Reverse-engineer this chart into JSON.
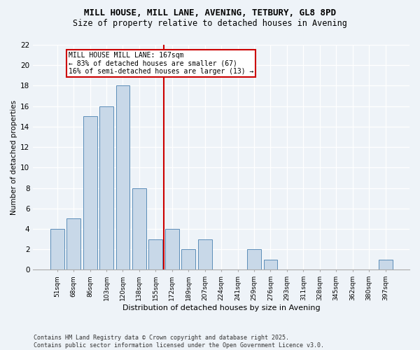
{
  "title1": "MILL HOUSE, MILL LANE, AVENING, TETBURY, GL8 8PD",
  "title2": "Size of property relative to detached houses in Avening",
  "xlabel": "Distribution of detached houses by size in Avening",
  "ylabel": "Number of detached properties",
  "bar_color": "#c8d8e8",
  "bar_edgecolor": "#5b8db8",
  "categories": [
    "51sqm",
    "68sqm",
    "86sqm",
    "103sqm",
    "120sqm",
    "138sqm",
    "155sqm",
    "172sqm",
    "189sqm",
    "207sqm",
    "224sqm",
    "241sqm",
    "259sqm",
    "276sqm",
    "293sqm",
    "311sqm",
    "328sqm",
    "345sqm",
    "362sqm",
    "380sqm",
    "397sqm"
  ],
  "values": [
    4,
    5,
    15,
    16,
    18,
    8,
    3,
    4,
    2,
    3,
    0,
    0,
    2,
    1,
    0,
    0,
    0,
    0,
    0,
    0,
    1
  ],
  "vline_color": "#cc0000",
  "annotation_text": "MILL HOUSE MILL LANE: 167sqm\n← 83% of detached houses are smaller (67)\n16% of semi-detached houses are larger (13) →",
  "annotation_box_edgecolor": "#cc0000",
  "ylim": [
    0,
    22
  ],
  "yticks": [
    0,
    2,
    4,
    6,
    8,
    10,
    12,
    14,
    16,
    18,
    20,
    22
  ],
  "footer": "Contains HM Land Registry data © Crown copyright and database right 2025.\nContains public sector information licensed under the Open Government Licence v3.0.",
  "bg_color": "#eef3f8",
  "plot_bg_color": "#eef3f8",
  "title1_fontsize": 9,
  "title2_fontsize": 8.5
}
